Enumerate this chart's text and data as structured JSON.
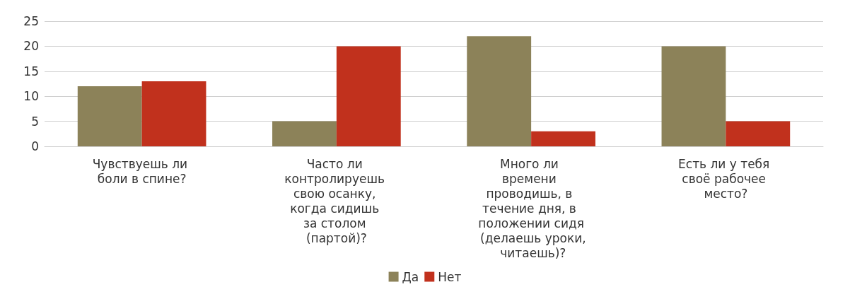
{
  "chart_data": {
    "type": "bar",
    "categories": [
      "Чувствуешь ли боли в спине?",
      "Часто ли контролируешь свою осанку, когда сидишь за столом (партой)?",
      "Много ли времени проводишь, в течение дня, в положении сидя (делаешь уроки, читаешь)?",
      "Есть ли у тебя своё рабочее место?"
    ],
    "series": [
      {
        "name": "Да",
        "color": "#8c8259",
        "values": [
          12,
          5,
          22,
          20
        ]
      },
      {
        "name": "Нет",
        "color": "#c1311d",
        "values": [
          13,
          20,
          3,
          5
        ]
      }
    ],
    "ylim": [
      0,
      25
    ],
    "yticks": [
      0,
      5,
      10,
      15,
      20,
      25
    ],
    "grid": "y",
    "legend": "bottom"
  }
}
